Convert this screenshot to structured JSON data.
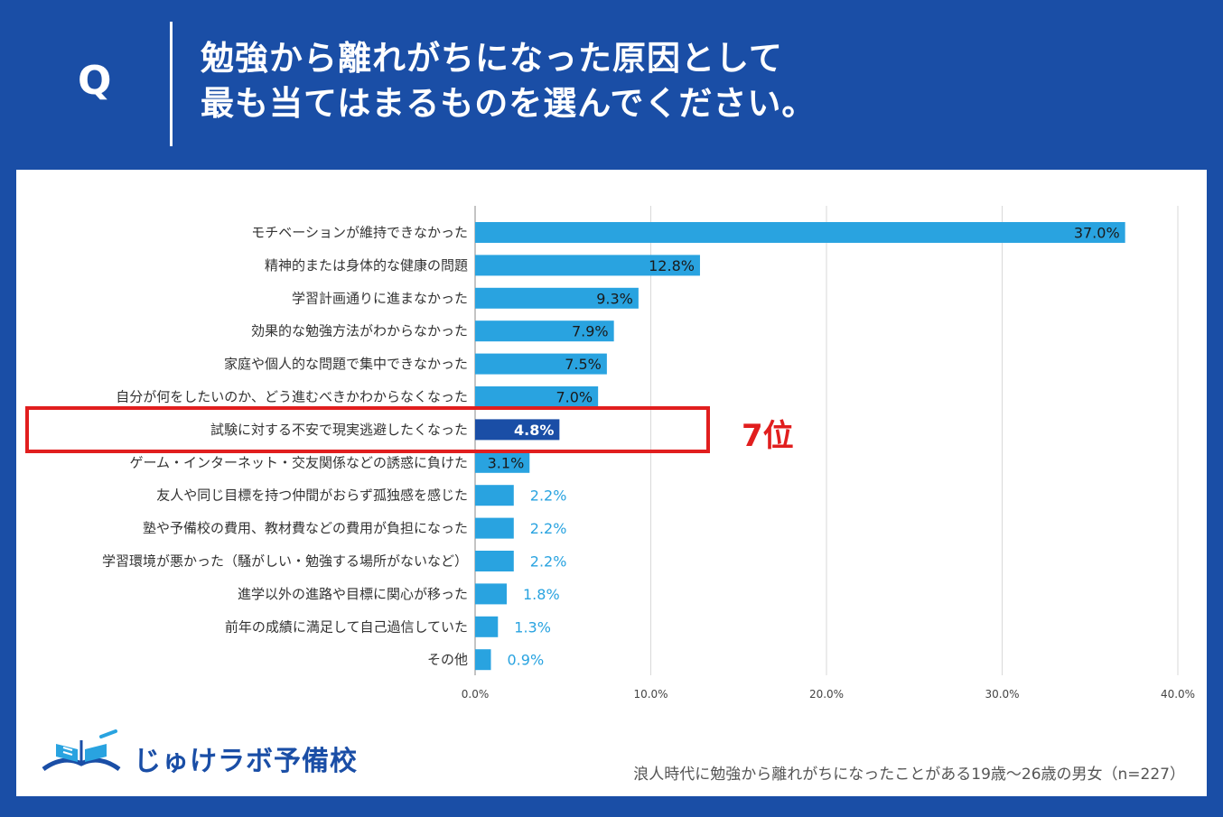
{
  "header": {
    "q_label": "Q",
    "question_line1": "勉強から離れがちになった原因として",
    "question_line2": "最も当てはまるものを選んでください。"
  },
  "highlight": {
    "rank_label": "7位",
    "category_index": 6
  },
  "logo": {
    "text": "じゅけラボ予備校"
  },
  "footnote": "浪人時代に勉強から離れがちになったことがある19歳～26歳の男女（n=227）",
  "colors": {
    "background": "#1a4ea6",
    "bar": "#29a3e0",
    "bar_highlight": "#1a4ea6",
    "highlight_border": "#e11e1e",
    "grid": "#d9d9d9"
  },
  "chart_data": {
    "type": "bar",
    "orientation": "horizontal",
    "categories": [
      "モチベーションが維持できなかった",
      "精神的または身体的な健康の問題",
      "学習計画通りに進まなかった",
      "効果的な勉強方法がわからなかった",
      "家庭や個人的な問題で集中できなかった",
      "自分が何をしたいのか、どう進むべきかわからなくなった",
      "試験に対する不安で現実逃避したくなった",
      "ゲーム・インターネット・交友関係などの誘惑に負けた",
      "友人や同じ目標を持つ仲間がおらず孤独感を感じた",
      "塾や予備校の費用、教材費などの費用が負担になった",
      "学習環境が悪かった（騒がしい・勉強する場所がないなど）",
      "進学以外の進路や目標に関心が移った",
      "前年の成績に満足して自己過信していた",
      "その他"
    ],
    "values": [
      37.0,
      12.8,
      9.3,
      7.9,
      7.5,
      7.0,
      4.8,
      3.1,
      2.2,
      2.2,
      2.2,
      1.8,
      1.3,
      0.9
    ],
    "value_labels": [
      "37.0%",
      "12.8%",
      "9.3%",
      "7.9%",
      "7.5%",
      "7.0%",
      "4.8%",
      "3.1%",
      "2.2%",
      "2.2%",
      "2.2%",
      "1.8%",
      "1.3%",
      "0.9%"
    ],
    "xlim": [
      0,
      40
    ],
    "xticks": [
      0,
      10,
      20,
      30,
      40
    ],
    "xtick_labels": [
      "0.0%",
      "10.0%",
      "20.0%",
      "30.0%",
      "40.0%"
    ],
    "grid": true,
    "unit": "%"
  }
}
